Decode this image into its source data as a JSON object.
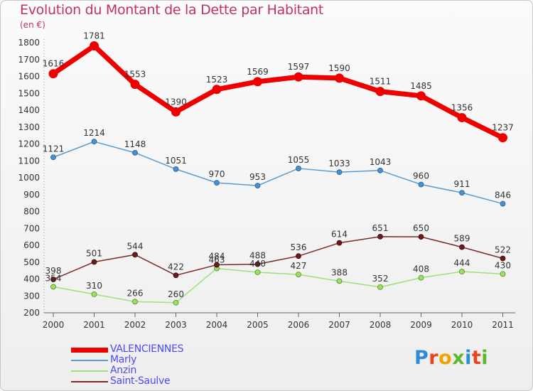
{
  "title": "Evolution du Montant de la Dette par Habitant",
  "unit": "(en €)",
  "brand": {
    "text": "Proxiti",
    "colors": [
      "#2e8bd8",
      "#e8441e",
      "#f0a400",
      "#5ab82e",
      "#2e8bd8",
      "#e8441e",
      "#5ab82e"
    ]
  },
  "chart_data": {
    "type": "line",
    "categories": [
      "2000",
      "2001",
      "2002",
      "2003",
      "2004",
      "2005",
      "2006",
      "2007",
      "2008",
      "2009",
      "2010",
      "2011"
    ],
    "ylim": [
      200,
      1800
    ],
    "yticks": [
      "200",
      "300",
      "400",
      "500",
      "600",
      "700",
      "800",
      "900",
      "1000",
      "1100",
      "1200",
      "1300",
      "1400",
      "1500",
      "1600",
      "1700",
      "1800"
    ],
    "grid": false,
    "legend_position": "bottom-left",
    "series": [
      {
        "name": "VALENCIENNES",
        "color": "#ee0000",
        "values": [
          1616,
          1781,
          1553,
          1390,
          1523,
          1569,
          1597,
          1590,
          1511,
          1485,
          1356,
          1237
        ]
      },
      {
        "name": "Marly",
        "color": "#5b9bd0",
        "values": [
          1121,
          1214,
          1148,
          1051,
          970,
          953,
          1055,
          1033,
          1043,
          960,
          911,
          846
        ]
      },
      {
        "name": "Anzin",
        "color": "#9ee07a",
        "values": [
          354,
          310,
          266,
          260,
          463,
          440,
          427,
          388,
          352,
          408,
          444,
          430
        ]
      },
      {
        "name": "Saint-Saulve",
        "color": "#7a2a2a",
        "values": [
          398,
          501,
          544,
          422,
          484,
          488,
          536,
          614,
          651,
          650,
          589,
          522
        ]
      }
    ]
  }
}
